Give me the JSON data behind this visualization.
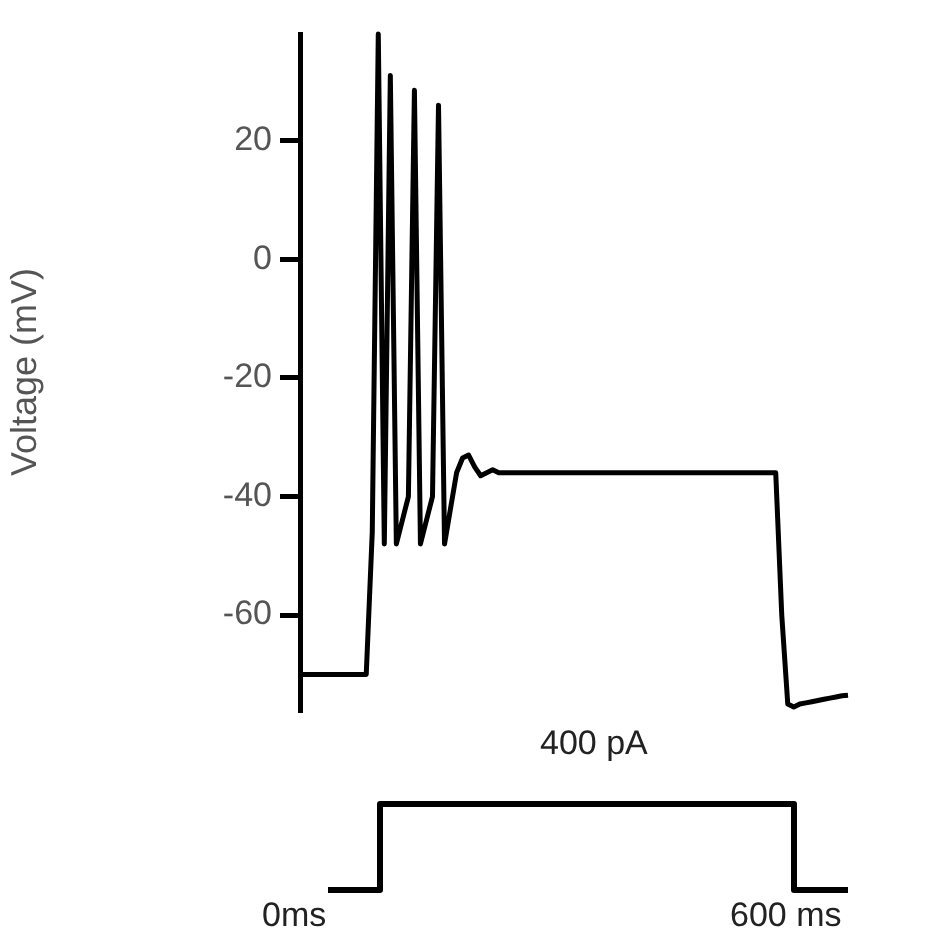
{
  "chart_data": [
    {
      "type": "line",
      "ylabel": "Voltage (mV)",
      "categories": [
        null,
        null,
        null,
        null,
        null,
        null,
        null,
        null,
        null,
        null,
        null,
        null,
        null,
        null,
        null,
        null,
        null,
        null,
        null,
        null,
        null,
        null,
        null,
        null,
        null,
        null,
        null,
        null,
        null,
        null,
        null,
        null,
        null,
        null,
        null,
        null,
        null,
        null,
        null,
        null,
        null,
        null,
        null,
        null,
        null,
        null,
        null,
        null,
        null,
        null,
        null,
        null,
        null,
        null,
        null,
        null,
        null,
        null,
        null,
        null,
        null,
        null,
        null,
        null,
        null,
        null,
        null,
        null,
        null,
        null,
        null,
        null,
        null,
        null,
        null,
        null,
        null,
        null,
        null,
        null,
        null,
        null,
        null,
        null,
        null,
        null,
        null,
        null,
        null,
        null,
        null,
        null
      ],
      "series": [
        {
          "color": "#000000",
          "values": [
            -70,
            -70,
            -70,
            -70,
            -70,
            -70,
            -70,
            -70,
            -70,
            -70,
            -70,
            -70,
            -46,
            38,
            -48,
            31,
            -48,
            -44,
            -40,
            28.5,
            -48,
            -44,
            -40,
            26,
            -48,
            -42,
            -36,
            -33.5,
            -33,
            -35,
            -36.5,
            -36,
            -35.5,
            -36,
            -36,
            -36,
            -36,
            -36,
            -36,
            -36,
            -36,
            -36,
            -36,
            -36,
            -36,
            -36,
            -36,
            -36,
            -36,
            -36,
            -36,
            -36,
            -36,
            -36,
            -36,
            -36,
            -36,
            -36,
            -36,
            -36,
            -36,
            -36,
            -36,
            -36,
            -36,
            -36,
            -36,
            -36,
            -36,
            -36,
            -36,
            -36,
            -36,
            -36,
            -36,
            -36,
            -36,
            -36,
            -36,
            -36,
            -60,
            -75,
            -75.5,
            -75,
            -74.8,
            -74.6,
            -74.4,
            -74.2,
            -74,
            -73.8,
            -73.6,
            -73.5
          ]
        }
      ],
      "ylim": [
        -76,
        38
      ],
      "yticks": [
        -60,
        -40,
        -20,
        0,
        20
      ],
      "marker": "none",
      "grid": false,
      "legend": false,
      "tick_labels": "y"
    },
    {
      "type": "other",
      "annotations": [
        "400 pA",
        "0ms",
        "600 ms"
      ]
    }
  ]
}
